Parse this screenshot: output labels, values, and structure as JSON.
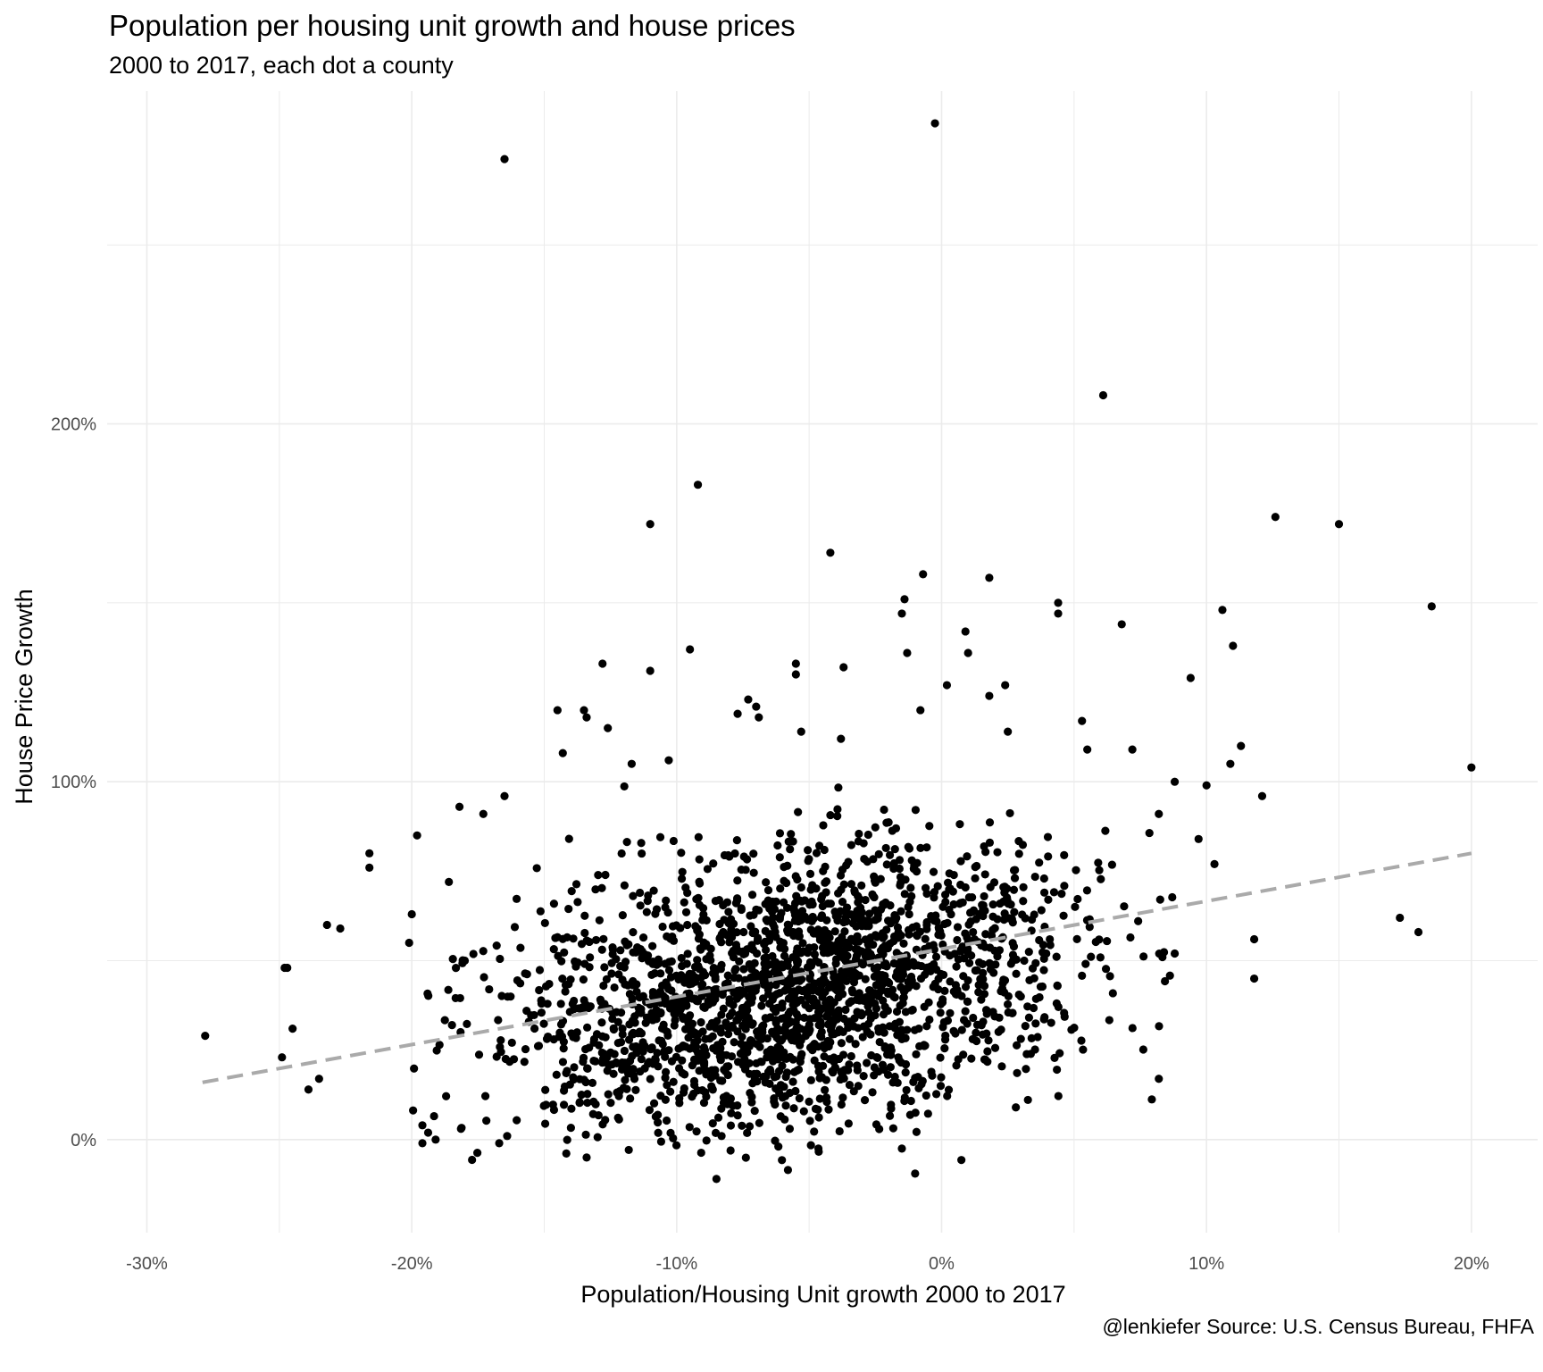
{
  "chart_data": {
    "type": "scatter",
    "title": "Population per housing unit growth and house prices",
    "subtitle": "2000 to 2017, each dot a county",
    "caption": "@lenkiefer Source: U.S. Census Bureau, FHFA",
    "xlabel": "Population/Housing Unit growth 2000 to 2017",
    "ylabel": "House Price Growth",
    "xlim": [
      -0.315,
      0.225
    ],
    "ylim": [
      -0.26,
      2.93
    ],
    "x_ticks": [
      {
        "value": -0.3,
        "label": "-30%"
      },
      {
        "value": -0.2,
        "label": "-20%"
      },
      {
        "value": -0.1,
        "label": "-10%"
      },
      {
        "value": 0.0,
        "label": "0%"
      },
      {
        "value": 0.1,
        "label": "10%"
      },
      {
        "value": 0.2,
        "label": "20%"
      }
    ],
    "y_ticks": [
      {
        "value": 0.0,
        "label": "0%"
      },
      {
        "value": 1.0,
        "label": "100%"
      },
      {
        "value": 2.0,
        "label": "200%"
      }
    ],
    "grid": true,
    "colors": {
      "points": "#000000",
      "trend": "#aaaaaa",
      "grid": "#ebebeb"
    },
    "trend_line": {
      "style": "dashed",
      "x": [
        -0.279,
        0.2
      ],
      "y": [
        0.16,
        0.8
      ]
    },
    "highlight_points": [
      {
        "x": -0.0025,
        "y": 2.84
      },
      {
        "x": -0.165,
        "y": 2.74
      },
      {
        "x": 0.061,
        "y": 2.08
      },
      {
        "x": -0.092,
        "y": 1.83
      },
      {
        "x": 0.126,
        "y": 1.74
      },
      {
        "x": 0.15,
        "y": 1.72
      },
      {
        "x": -0.11,
        "y": 1.72
      },
      {
        "x": -0.042,
        "y": 1.64
      },
      {
        "x": -0.007,
        "y": 1.58
      },
      {
        "x": 0.018,
        "y": 1.57
      },
      {
        "x": -0.014,
        "y": 1.51
      },
      {
        "x": 0.044,
        "y": 1.5
      },
      {
        "x": 0.185,
        "y": 1.49
      },
      {
        "x": 0.106,
        "y": 1.48
      },
      {
        "x": 0.044,
        "y": 1.47
      },
      {
        "x": -0.015,
        "y": 1.47
      },
      {
        "x": 0.068,
        "y": 1.44
      },
      {
        "x": 0.009,
        "y": 1.42
      },
      {
        "x": 0.11,
        "y": 1.38
      },
      {
        "x": -0.095,
        "y": 1.37
      },
      {
        "x": 0.01,
        "y": 1.36
      },
      {
        "x": -0.013,
        "y": 1.36
      },
      {
        "x": -0.055,
        "y": 1.33
      },
      {
        "x": -0.128,
        "y": 1.33
      },
      {
        "x": -0.037,
        "y": 1.32
      },
      {
        "x": -0.11,
        "y": 1.31
      },
      {
        "x": -0.055,
        "y": 1.3
      },
      {
        "x": 0.094,
        "y": 1.29
      },
      {
        "x": 0.002,
        "y": 1.27
      },
      {
        "x": 0.024,
        "y": 1.27
      },
      {
        "x": 0.018,
        "y": 1.24
      },
      {
        "x": -0.073,
        "y": 1.23
      },
      {
        "x": -0.07,
        "y": 1.21
      },
      {
        "x": -0.145,
        "y": 1.2
      },
      {
        "x": -0.135,
        "y": 1.2
      },
      {
        "x": -0.008,
        "y": 1.2
      },
      {
        "x": -0.077,
        "y": 1.19
      },
      {
        "x": -0.069,
        "y": 1.18
      },
      {
        "x": -0.134,
        "y": 1.18
      },
      {
        "x": 0.053,
        "y": 1.17
      },
      {
        "x": -0.126,
        "y": 1.15
      },
      {
        "x": -0.053,
        "y": 1.14
      },
      {
        "x": 0.025,
        "y": 1.14
      },
      {
        "x": -0.038,
        "y": 1.12
      },
      {
        "x": 0.113,
        "y": 1.1
      },
      {
        "x": 0.072,
        "y": 1.09
      },
      {
        "x": 0.055,
        "y": 1.09
      },
      {
        "x": -0.143,
        "y": 1.08
      },
      {
        "x": -0.103,
        "y": 1.06
      },
      {
        "x": -0.117,
        "y": 1.05
      },
      {
        "x": 0.109,
        "y": 1.05
      },
      {
        "x": 0.2,
        "y": 1.04
      },
      {
        "x": 0.1,
        "y": 0.99
      },
      {
        "x": 0.088,
        "y": 1.0
      },
      {
        "x": 0.121,
        "y": 0.96
      },
      {
        "x": -0.165,
        "y": 0.96
      },
      {
        "x": -0.182,
        "y": 0.93
      },
      {
        "x": -0.173,
        "y": 0.91
      },
      {
        "x": 0.082,
        "y": 0.91
      },
      {
        "x": -0.198,
        "y": 0.85
      },
      {
        "x": 0.097,
        "y": 0.84
      },
      {
        "x": -0.216,
        "y": 0.8
      },
      {
        "x": -0.216,
        "y": 0.76
      },
      {
        "x": 0.103,
        "y": 0.77
      },
      {
        "x": -0.186,
        "y": 0.72
      },
      {
        "x": -0.2,
        "y": 0.63
      },
      {
        "x": -0.232,
        "y": 0.6
      },
      {
        "x": -0.227,
        "y": 0.59
      },
      {
        "x": 0.173,
        "y": 0.62
      },
      {
        "x": 0.18,
        "y": 0.58
      },
      {
        "x": -0.201,
        "y": 0.55
      },
      {
        "x": 0.118,
        "y": 0.56
      },
      {
        "x": -0.247,
        "y": 0.48
      },
      {
        "x": -0.248,
        "y": 0.48
      },
      {
        "x": 0.118,
        "y": 0.45
      },
      {
        "x": -0.18,
        "y": 0.5
      },
      {
        "x": -0.245,
        "y": 0.31
      },
      {
        "x": -0.278,
        "y": 0.29
      },
      {
        "x": -0.249,
        "y": 0.23
      },
      {
        "x": -0.235,
        "y": 0.17
      },
      {
        "x": -0.239,
        "y": 0.14
      },
      {
        "x": -0.196,
        "y": 0.04
      },
      {
        "x": -0.191,
        "y": 0.0
      },
      {
        "x": -0.196,
        "y": -0.01
      },
      {
        "x": -0.167,
        "y": -0.01
      },
      {
        "x": -0.164,
        "y": 0.01
      },
      {
        "x": -0.134,
        "y": -0.05
      },
      {
        "x": -0.085,
        "y": -0.11
      },
      {
        "x": -0.058,
        "y": -0.085
      },
      {
        "x": -0.01,
        "y": -0.095
      },
      {
        "x": -0.015,
        "y": -0.025
      },
      {
        "x": 0.082,
        "y": 0.17
      },
      {
        "x": 0.088,
        "y": 0.52
      }
    ],
    "cluster": {
      "description_note": "",
      "x_center": -0.055,
      "x_sd": 0.055,
      "y_center": 0.42,
      "y_sd": 0.19,
      "count": 2150
    }
  }
}
